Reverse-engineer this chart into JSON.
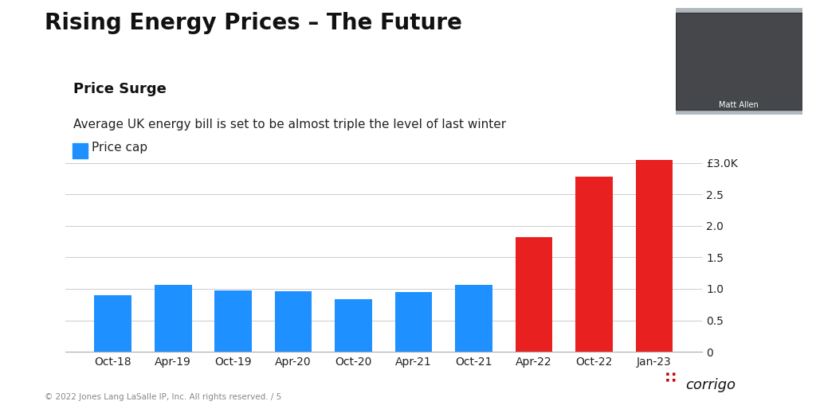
{
  "categories": [
    "Oct-18",
    "Apr-19",
    "Oct-19",
    "Apr-20",
    "Oct-20",
    "Apr-21",
    "Oct-21",
    "Apr-22",
    "Oct-22",
    "Jan-23"
  ],
  "values": [
    0.9,
    1.06,
    0.97,
    0.96,
    0.84,
    0.95,
    1.06,
    1.82,
    2.78,
    3.05
  ],
  "bar_colors": [
    "#1E90FF",
    "#1E90FF",
    "#1E90FF",
    "#1E90FF",
    "#1E90FF",
    "#1E90FF",
    "#1E90FF",
    "#E82020",
    "#E82020",
    "#E82020"
  ],
  "title": "Rising Energy Prices – The Future",
  "subtitle": "Price Surge",
  "description": "Average UK energy bill is set to be almost triple the level of last winter",
  "legend_label": "Price cap",
  "legend_color": "#1E90FF",
  "ytick_labels": [
    "0",
    "0.5",
    "1.0",
    "1.5",
    "2.0",
    "2.5",
    "£3.0K"
  ],
  "ytick_values": [
    0,
    0.5,
    1.0,
    1.5,
    2.0,
    2.5,
    3.0
  ],
  "ylim": [
    0,
    3.25
  ],
  "background_color": "#FFFFFF",
  "grid_color": "#CCCCCC",
  "title_fontsize": 20,
  "subtitle_fontsize": 13,
  "desc_fontsize": 11,
  "axis_fontsize": 10,
  "footer_text": "© 2022 Jones Lang LaSalle IP, Inc. All rights reserved. / 5",
  "corrigo_text": "corrigo"
}
